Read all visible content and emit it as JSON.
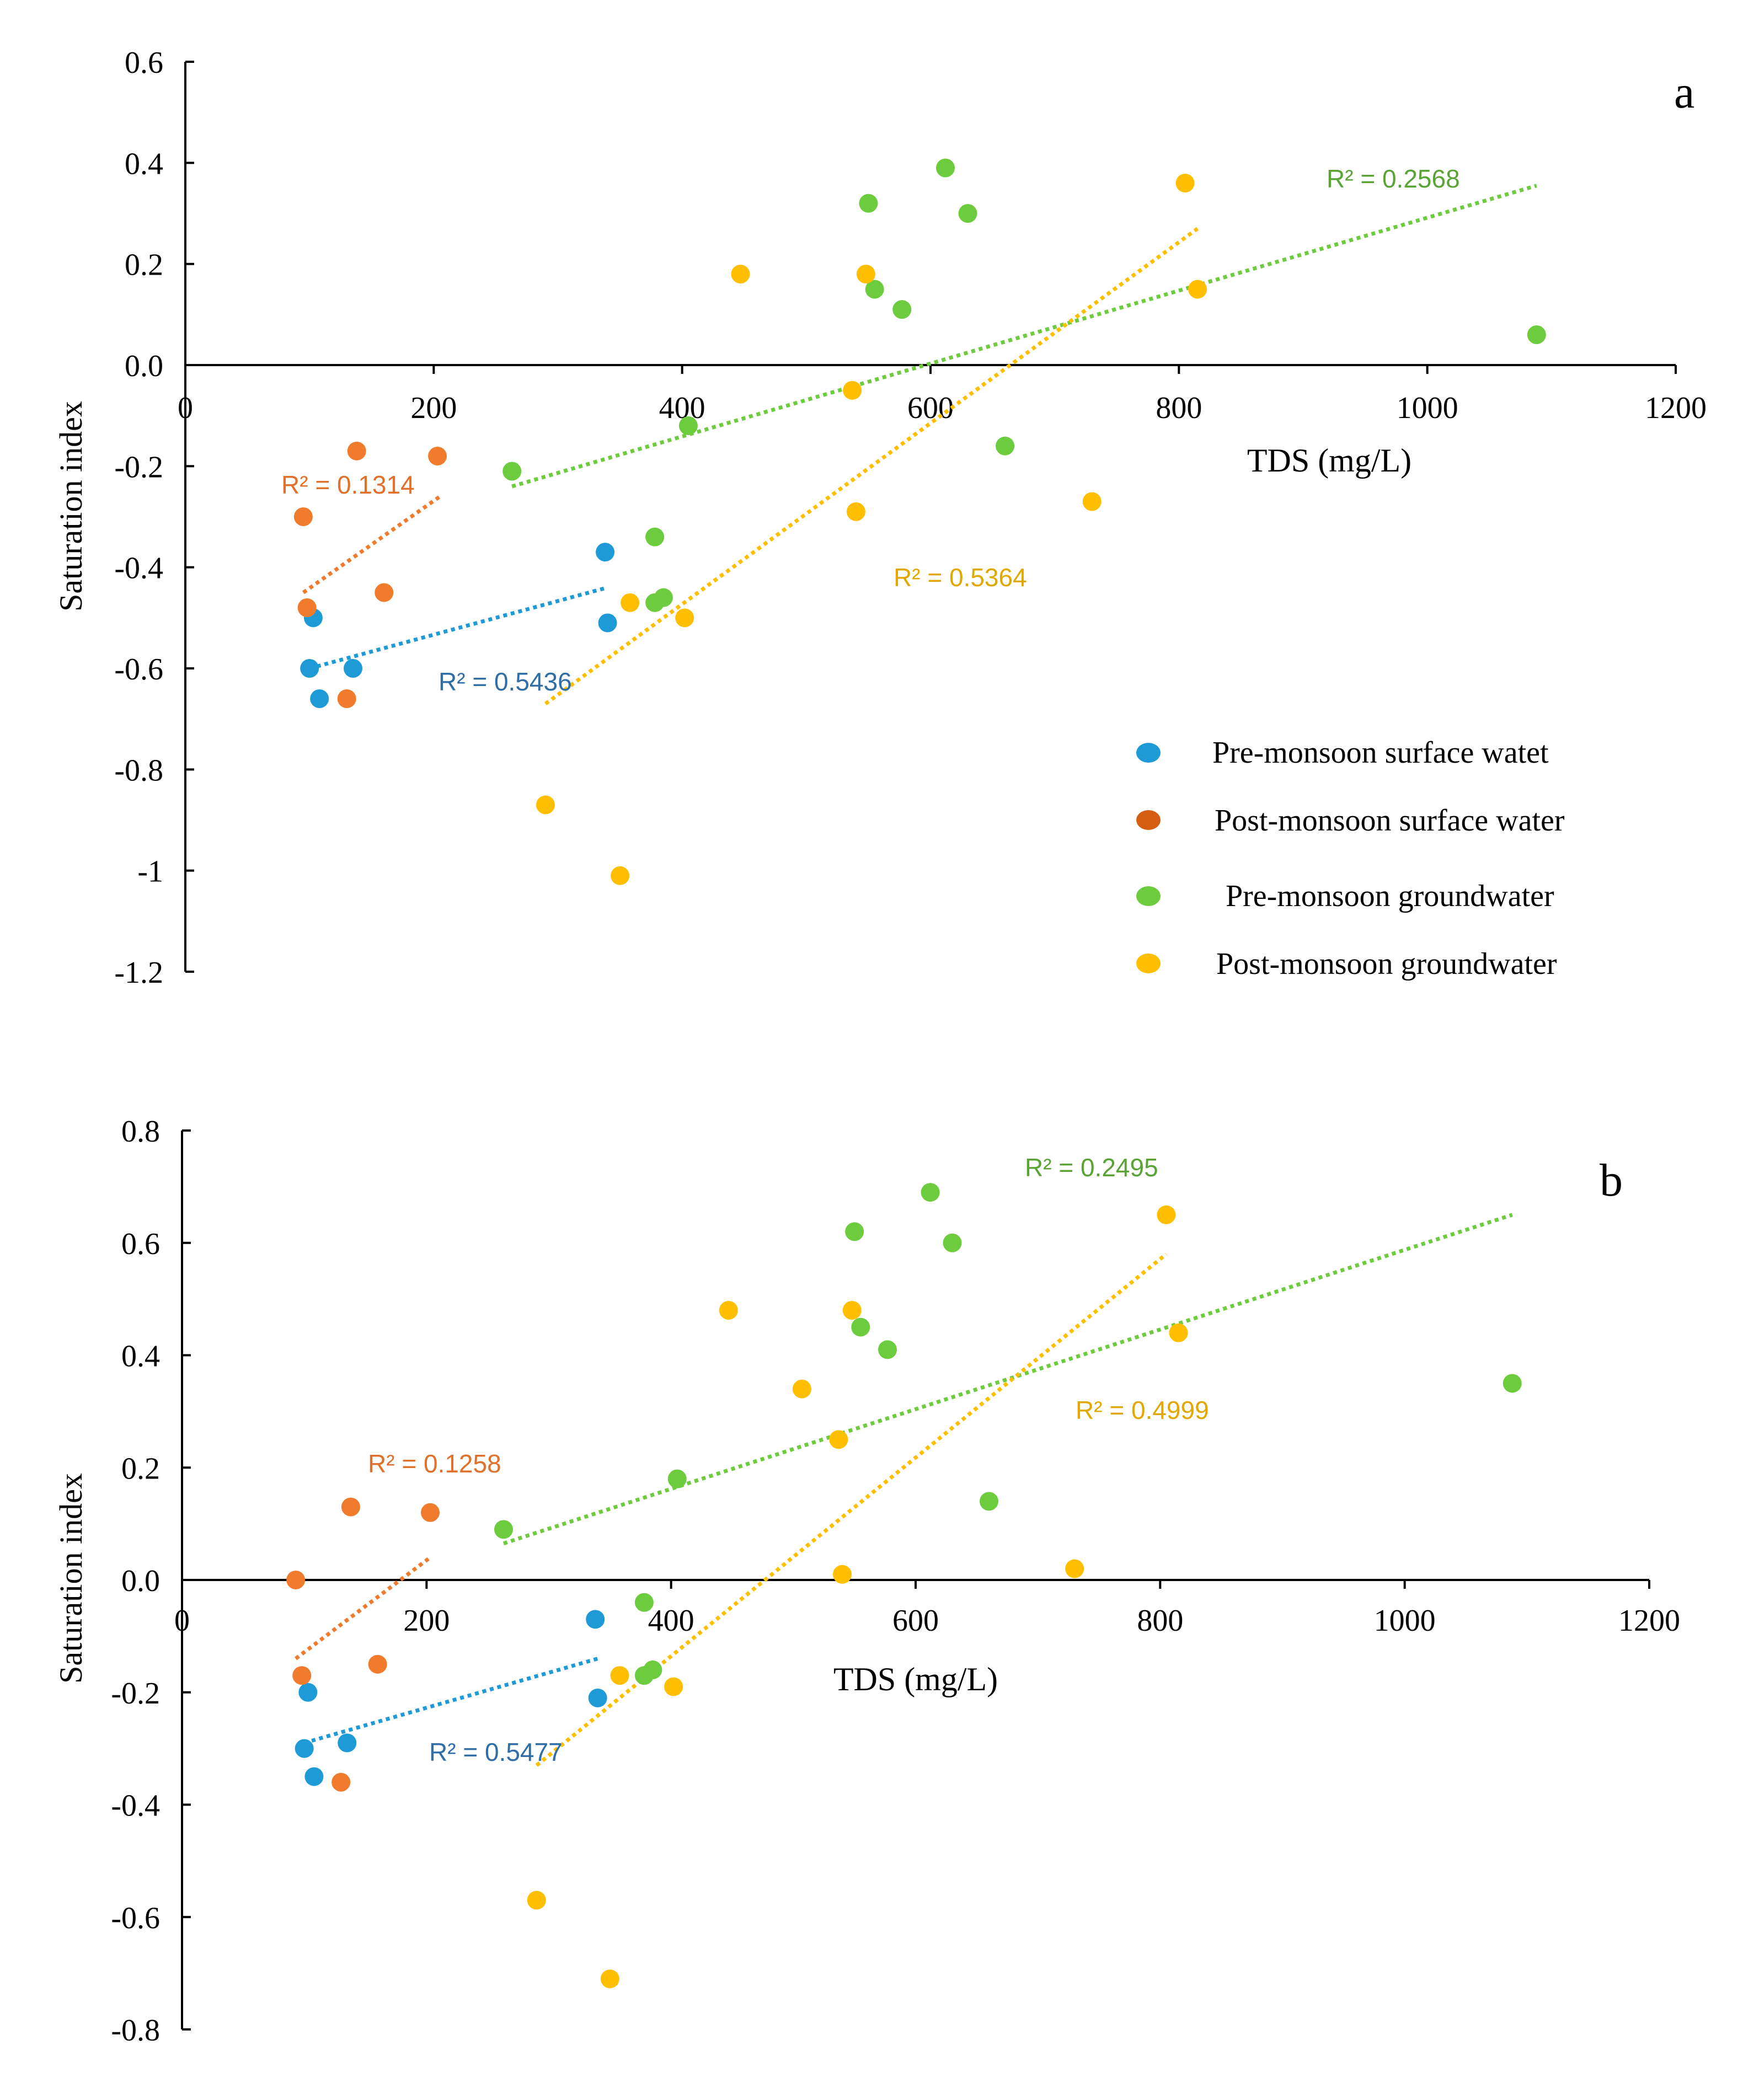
{
  "colors": {
    "pre_surface": "#1E9BD7",
    "post_surface": "#F07B2C",
    "pre_ground": "#6DCB3E",
    "post_ground": "#FFBF00",
    "r2_pre_surface": "#2F6EA6",
    "r2_post_surface": "#E0702A",
    "r2_pre_ground": "#5AA335",
    "r2_post_ground": "#E0A800"
  },
  "legend": {
    "pre_surface": "Pre-monsoon surface watet",
    "post_surface": "Post-monsoon surface water",
    "pre_ground": "Pre-monsoon groundwater",
    "post_ground": "Post-monsoon groundwater"
  },
  "chart_data": [
    {
      "type": "scatter",
      "panel_label": "a",
      "xlabel": "TDS (mg/L)",
      "ylabel": "Saturation index",
      "xlim": [
        0,
        1200
      ],
      "ylim": [
        -1.2,
        0.6
      ],
      "x_ticks": [
        0,
        200,
        400,
        600,
        800,
        1000,
        1200
      ],
      "x_tick_labels": [
        "0",
        "200",
        "400",
        "600",
        "800",
        "1000",
        "1200"
      ],
      "y_ticks": [
        0.6,
        0.4,
        0.2,
        0.0,
        -0.2,
        -0.4,
        -0.6,
        -0.8,
        -1.0,
        -1.2
      ],
      "y_tick_labels": [
        "0.6",
        "0.4",
        "0.2",
        "0.0",
        "-0.2",
        "-0.4",
        "-0.6",
        "-0.8",
        "-1",
        "-1.2"
      ],
      "series": [
        {
          "key": "pre_surface",
          "name": "Pre-monsoon surface watet",
          "points": [
            [
              103,
              -0.5
            ],
            [
              100,
              -0.6
            ],
            [
              108,
              -0.66
            ],
            [
              135,
              -0.6
            ],
            [
              338,
              -0.37
            ],
            [
              340,
              -0.51
            ]
          ],
          "trend": [
            [
              100,
              -0.6
            ],
            [
              340,
              -0.44
            ]
          ],
          "r2_text": "R² = 0.5436"
        },
        {
          "key": "post_surface",
          "name": "Post-monsoon surface water",
          "points": [
            [
              95,
              -0.3
            ],
            [
              98,
              -0.48
            ],
            [
              138,
              -0.17
            ],
            [
              130,
              -0.66
            ],
            [
              160,
              -0.45
            ],
            [
              203,
              -0.18
            ]
          ],
          "trend": [
            [
              95,
              -0.45
            ],
            [
              205,
              -0.26
            ]
          ],
          "r2_text": "R² = 0.1314"
        },
        {
          "key": "pre_ground",
          "name": "Pre-monsoon groundwater",
          "points": [
            [
              263,
              -0.21
            ],
            [
              405,
              -0.12
            ],
            [
              378,
              -0.34
            ],
            [
              378,
              -0.47
            ],
            [
              385,
              -0.46
            ],
            [
              550,
              0.32
            ],
            [
              555,
              0.15
            ],
            [
              577,
              0.11
            ],
            [
              612,
              0.39
            ],
            [
              630,
              0.3
            ],
            [
              660,
              -0.16
            ],
            [
              1088,
              0.06
            ]
          ],
          "trend": [
            [
              263,
              -0.24
            ],
            [
              1088,
              0.355
            ]
          ],
          "r2_text": "R² = 0.2568"
        },
        {
          "key": "post_ground",
          "name": "Post-monsoon groundwater",
          "points": [
            [
              290,
              -0.87
            ],
            [
              350,
              -1.01
            ],
            [
              358,
              -0.47
            ],
            [
              402,
              -0.5
            ],
            [
              447,
              0.18
            ],
            [
              537,
              -0.05
            ],
            [
              540,
              -0.29
            ],
            [
              548,
              0.18
            ],
            [
              730,
              -0.27
            ],
            [
              805,
              0.36
            ],
            [
              815,
              0.15
            ]
          ],
          "trend": [
            [
              290,
              -0.67
            ],
            [
              815,
              0.27
            ]
          ],
          "r2_text": "R² = 0.5364"
        }
      ]
    },
    {
      "type": "scatter",
      "panel_label": "b",
      "xlabel": "TDS (mg/L)",
      "ylabel": "Saturation index",
      "xlim": [
        0,
        1200
      ],
      "ylim": [
        -0.8,
        0.8
      ],
      "x_ticks": [
        0,
        200,
        400,
        600,
        800,
        1000,
        1200
      ],
      "x_tick_labels": [
        "0",
        "200",
        "400",
        "600",
        "800",
        "1000",
        "1200"
      ],
      "y_ticks": [
        0.8,
        0.6,
        0.4,
        0.2,
        0.0,
        -0.2,
        -0.4,
        -0.6,
        -0.8
      ],
      "y_tick_labels": [
        "0.8",
        "0.6",
        "0.4",
        "0.2",
        "0.0",
        "-0.2",
        "-0.4",
        "-0.6",
        "-0.8"
      ],
      "series": [
        {
          "key": "pre_surface",
          "name": "Pre-monsoon surface watet",
          "points": [
            [
              103,
              -0.2
            ],
            [
              100,
              -0.3
            ],
            [
              108,
              -0.35
            ],
            [
              135,
              -0.29
            ],
            [
              338,
              -0.07
            ],
            [
              340,
              -0.21
            ]
          ],
          "trend": [
            [
              100,
              -0.29
            ],
            [
              340,
              -0.14
            ]
          ],
          "r2_text": "R² = 0.5477"
        },
        {
          "key": "post_surface",
          "name": "Post-monsoon surface water",
          "points": [
            [
              93,
              0.0
            ],
            [
              98,
              -0.17
            ],
            [
              138,
              0.13
            ],
            [
              130,
              -0.36
            ],
            [
              160,
              -0.15
            ],
            [
              203,
              0.12
            ]
          ],
          "trend": [
            [
              93,
              -0.14
            ],
            [
              203,
              0.04
            ]
          ],
          "r2_text": "R² = 0.1258"
        },
        {
          "key": "pre_ground",
          "name": "Pre-monsoon groundwater",
          "points": [
            [
              263,
              0.09
            ],
            [
              405,
              0.18
            ],
            [
              378,
              -0.04
            ],
            [
              378,
              -0.17
            ],
            [
              385,
              -0.16
            ],
            [
              550,
              0.62
            ],
            [
              555,
              0.45
            ],
            [
              577,
              0.41
            ],
            [
              612,
              0.69
            ],
            [
              630,
              0.6
            ],
            [
              660,
              0.14
            ],
            [
              1088,
              0.35
            ]
          ],
          "trend": [
            [
              263,
              0.065
            ],
            [
              1088,
              0.65
            ]
          ],
          "r2_text": "R² = 0.2495"
        },
        {
          "key": "post_ground",
          "name": "Post-monsoon groundwater",
          "points": [
            [
              290,
              -0.57
            ],
            [
              350,
              -0.71
            ],
            [
              358,
              -0.17
            ],
            [
              402,
              -0.19
            ],
            [
              447,
              0.48
            ],
            [
              507,
              0.34
            ],
            [
              537,
              0.25
            ],
            [
              540,
              0.01
            ],
            [
              548,
              0.48
            ],
            [
              730,
              0.02
            ],
            [
              805,
              0.65
            ],
            [
              815,
              0.44
            ]
          ],
          "trend": [
            [
              290,
              -0.33
            ],
            [
              805,
              0.58
            ]
          ],
          "r2_text": "R² = 0.4999"
        }
      ]
    }
  ]
}
